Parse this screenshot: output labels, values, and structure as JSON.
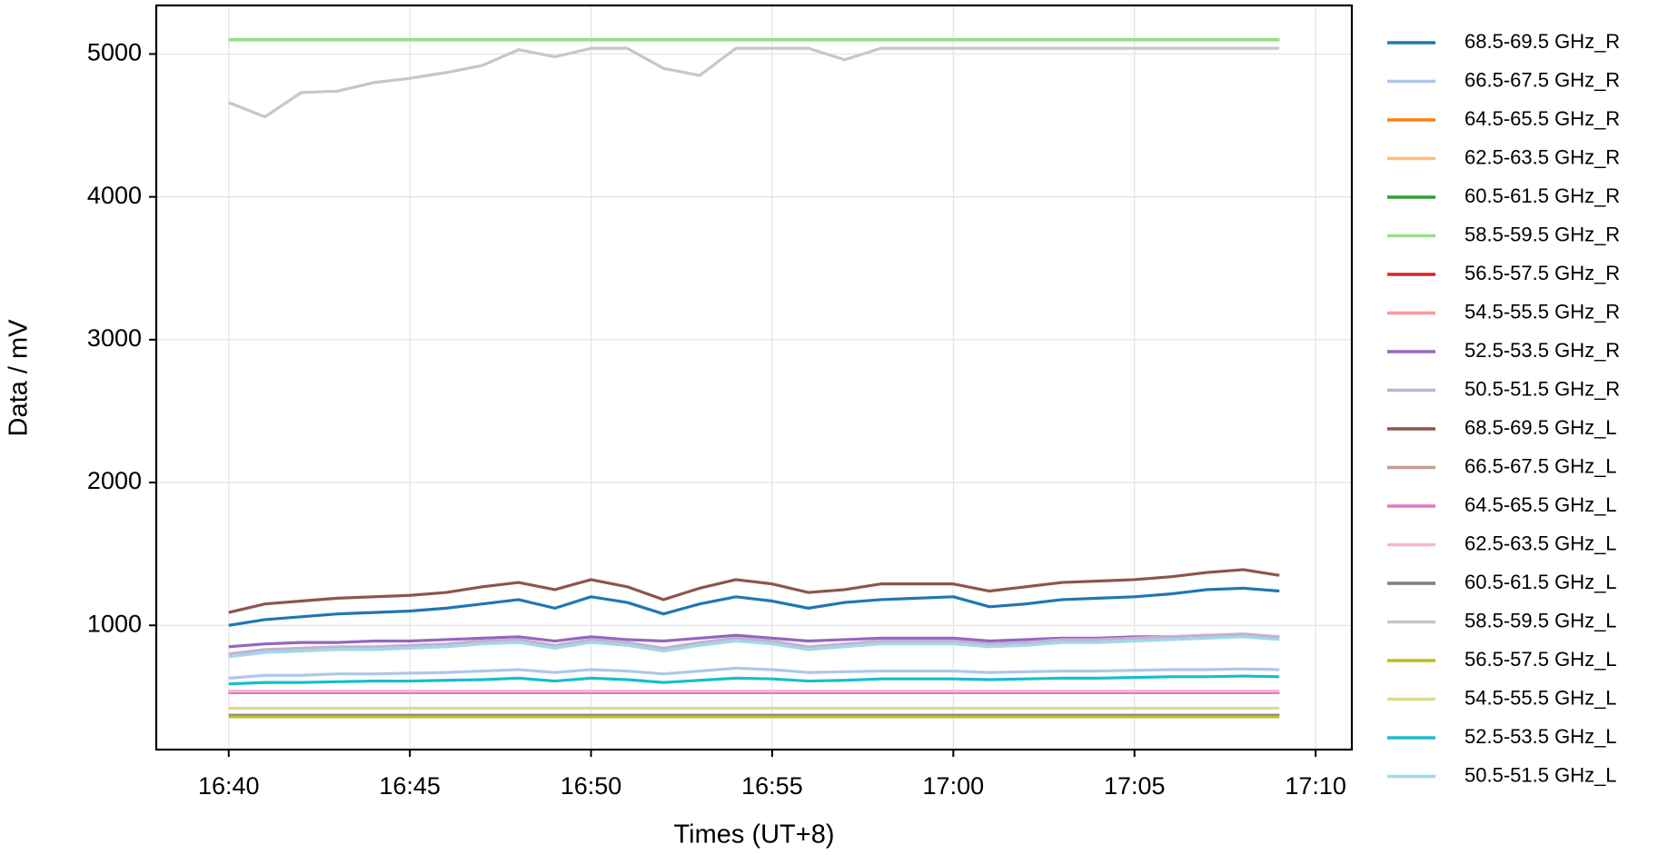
{
  "chart_data": {
    "type": "line",
    "x_label": "Times (UT+8)",
    "y_label": "Data / mV",
    "x": [
      "16:40",
      "16:41",
      "16:42",
      "16:43",
      "16:44",
      "16:45",
      "16:46",
      "16:47",
      "16:48",
      "16:49",
      "16:50",
      "16:51",
      "16:52",
      "16:53",
      "16:54",
      "16:55",
      "16:56",
      "16:57",
      "16:58",
      "16:59",
      "17:00",
      "17:01",
      "17:02",
      "17:03",
      "17:04",
      "17:05",
      "17:06",
      "17:07",
      "17:08",
      "17:09"
    ],
    "xlim": [
      "16:38",
      "17:11"
    ],
    "xticks": [
      "16:40",
      "16:45",
      "16:50",
      "16:55",
      "17:00",
      "17:05",
      "17:10"
    ],
    "ylim": [
      130,
      5340
    ],
    "yticks": [
      1000,
      2000,
      3000,
      4000,
      5000
    ],
    "grid": true,
    "legend": "outside right",
    "series": [
      {
        "name": "68.5-69.5 GHz_R",
        "color": "#1f77b4",
        "values": [
          1000,
          1040,
          1060,
          1080,
          1090,
          1100,
          1120,
          1150,
          1180,
          1120,
          1200,
          1160,
          1080,
          1150,
          1200,
          1170,
          1120,
          1160,
          1180,
          1190,
          1200,
          1130,
          1150,
          1180,
          1190,
          1200,
          1220,
          1250,
          1260,
          1240
        ]
      },
      {
        "name": "66.5-67.5 GHz_R",
        "color": "#aec7e8",
        "values": [
          630,
          650,
          650,
          660,
          660,
          665,
          670,
          680,
          690,
          670,
          690,
          680,
          660,
          680,
          700,
          690,
          670,
          675,
          680,
          680,
          680,
          670,
          675,
          680,
          680,
          685,
          690,
          690,
          695,
          690
        ]
      },
      {
        "name": "64.5-65.5 GHz_R",
        "color": "#ff7f0e",
        "values": [
          530,
          530,
          530,
          530,
          530,
          530,
          530,
          530,
          530,
          530,
          530,
          530,
          530,
          530,
          530,
          530,
          530,
          530,
          530,
          530,
          530,
          530,
          530,
          530,
          530,
          530,
          530,
          530,
          530,
          530
        ]
      },
      {
        "name": "62.5-63.5 GHz_R",
        "color": "#ffbb78",
        "values": [
          530,
          530,
          530,
          530,
          530,
          530,
          530,
          530,
          530,
          530,
          530,
          530,
          530,
          530,
          530,
          530,
          530,
          530,
          530,
          530,
          530,
          530,
          530,
          530,
          530,
          530,
          530,
          530,
          530,
          530
        ]
      },
      {
        "name": "60.5-61.5 GHz_R",
        "color": "#2ca02c",
        "values": [
          5100,
          5100,
          5100,
          5100,
          5100,
          5100,
          5100,
          5100,
          5100,
          5100,
          5100,
          5100,
          5100,
          5100,
          5100,
          5100,
          5100,
          5100,
          5100,
          5100,
          5100,
          5100,
          5100,
          5100,
          5100,
          5100,
          5100,
          5100,
          5100,
          5100
        ]
      },
      {
        "name": "58.5-59.5 GHz_R",
        "color": "#98df8a",
        "values": [
          5100,
          5100,
          5100,
          5100,
          5100,
          5100,
          5100,
          5100,
          5100,
          5100,
          5100,
          5100,
          5100,
          5100,
          5100,
          5100,
          5100,
          5100,
          5100,
          5100,
          5100,
          5100,
          5100,
          5100,
          5100,
          5100,
          5100,
          5100,
          5100,
          5100
        ]
      },
      {
        "name": "56.5-57.5 GHz_R",
        "color": "#d62728",
        "values": [
          530,
          530,
          530,
          530,
          530,
          530,
          530,
          530,
          530,
          530,
          530,
          530,
          530,
          530,
          530,
          530,
          530,
          530,
          530,
          530,
          530,
          530,
          530,
          530,
          530,
          530,
          530,
          530,
          530,
          530
        ]
      },
      {
        "name": "54.5-55.5 GHz_R",
        "color": "#ff9896",
        "values": [
          530,
          530,
          530,
          530,
          530,
          530,
          530,
          530,
          530,
          530,
          530,
          530,
          530,
          530,
          530,
          530,
          530,
          530,
          530,
          530,
          530,
          530,
          530,
          530,
          530,
          530,
          530,
          530,
          530,
          530
        ]
      },
      {
        "name": "52.5-53.5 GHz_R",
        "color": "#9467bd",
        "values": [
          850,
          870,
          880,
          880,
          890,
          890,
          900,
          910,
          920,
          890,
          920,
          900,
          890,
          910,
          930,
          910,
          890,
          900,
          910,
          910,
          910,
          890,
          900,
          910,
          910,
          920,
          920,
          930,
          930,
          920
        ]
      },
      {
        "name": "50.5-51.5 GHz_R",
        "color": "#c5b0d5",
        "values": [
          800,
          830,
          840,
          850,
          850,
          860,
          870,
          890,
          900,
          860,
          900,
          880,
          840,
          880,
          910,
          890,
          850,
          870,
          890,
          890,
          890,
          870,
          880,
          900,
          900,
          910,
          920,
          930,
          940,
          920
        ]
      },
      {
        "name": "68.5-69.5 GHz_L",
        "color": "#8c564b",
        "values": [
          1090,
          1150,
          1170,
          1190,
          1200,
          1210,
          1230,
          1270,
          1300,
          1250,
          1320,
          1270,
          1180,
          1260,
          1320,
          1290,
          1230,
          1250,
          1290,
          1290,
          1290,
          1240,
          1270,
          1300,
          1310,
          1320,
          1340,
          1370,
          1390,
          1350
        ]
      },
      {
        "name": "66.5-67.5 GHz_L",
        "color": "#c49c94",
        "values": [
          530,
          530,
          530,
          530,
          530,
          530,
          530,
          530,
          530,
          530,
          530,
          530,
          530,
          530,
          530,
          530,
          530,
          530,
          530,
          530,
          530,
          530,
          530,
          530,
          530,
          530,
          530,
          530,
          530,
          530
        ]
      },
      {
        "name": "64.5-65.5 GHz_L",
        "color": "#e377c2",
        "values": [
          530,
          530,
          530,
          530,
          530,
          530,
          530,
          530,
          530,
          530,
          530,
          530,
          530,
          530,
          530,
          530,
          530,
          530,
          530,
          530,
          530,
          530,
          530,
          530,
          530,
          530,
          530,
          530,
          530,
          530
        ]
      },
      {
        "name": "62.5-63.5 GHz_L",
        "color": "#f7b6d2",
        "values": [
          540,
          540,
          540,
          540,
          540,
          540,
          540,
          540,
          540,
          540,
          540,
          540,
          540,
          540,
          540,
          540,
          540,
          540,
          540,
          540,
          540,
          540,
          540,
          540,
          540,
          540,
          540,
          540,
          540,
          540
        ]
      },
      {
        "name": "60.5-61.5 GHz_L",
        "color": "#7f7f7f",
        "values": [
          370,
          370,
          370,
          370,
          370,
          370,
          370,
          370,
          370,
          370,
          370,
          370,
          370,
          370,
          370,
          370,
          370,
          370,
          370,
          370,
          370,
          370,
          370,
          370,
          370,
          370,
          370,
          370,
          370,
          370
        ]
      },
      {
        "name": "58.5-59.5 GHz_L",
        "color": "#c7c7c7",
        "values": [
          4660,
          4560,
          4730,
          4740,
          4800,
          4830,
          4870,
          4920,
          5030,
          4980,
          5040,
          5040,
          4900,
          4850,
          5040,
          5040,
          5040,
          4960,
          5040,
          5040,
          5040,
          5040,
          5040,
          5040,
          5040,
          5040,
          5040,
          5040,
          5040,
          5040
        ]
      },
      {
        "name": "56.5-57.5 GHz_L",
        "color": "#bcbd22",
        "values": [
          360,
          360,
          360,
          360,
          360,
          360,
          360,
          360,
          360,
          360,
          360,
          360,
          360,
          360,
          360,
          360,
          360,
          360,
          360,
          360,
          360,
          360,
          360,
          360,
          360,
          360,
          360,
          360,
          360,
          360
        ]
      },
      {
        "name": "54.5-55.5 GHz_L",
        "color": "#dbdb8d",
        "values": [
          420,
          420,
          420,
          420,
          420,
          420,
          420,
          420,
          420,
          420,
          420,
          420,
          420,
          420,
          420,
          420,
          420,
          420,
          420,
          420,
          420,
          420,
          420,
          420,
          420,
          420,
          420,
          420,
          420,
          420
        ]
      },
      {
        "name": "52.5-53.5 GHz_L",
        "color": "#17becf",
        "values": [
          590,
          600,
          600,
          605,
          610,
          610,
          615,
          620,
          630,
          610,
          630,
          620,
          600,
          615,
          630,
          625,
          610,
          615,
          625,
          625,
          625,
          620,
          625,
          630,
          630,
          635,
          640,
          640,
          645,
          640
        ]
      },
      {
        "name": "50.5-51.5 GHz_L",
        "color": "#9edae5",
        "values": [
          780,
          810,
          820,
          830,
          830,
          840,
          850,
          870,
          880,
          840,
          880,
          860,
          820,
          860,
          890,
          870,
          830,
          850,
          870,
          870,
          870,
          850,
          860,
          880,
          880,
          890,
          900,
          910,
          920,
          900
        ]
      }
    ]
  }
}
